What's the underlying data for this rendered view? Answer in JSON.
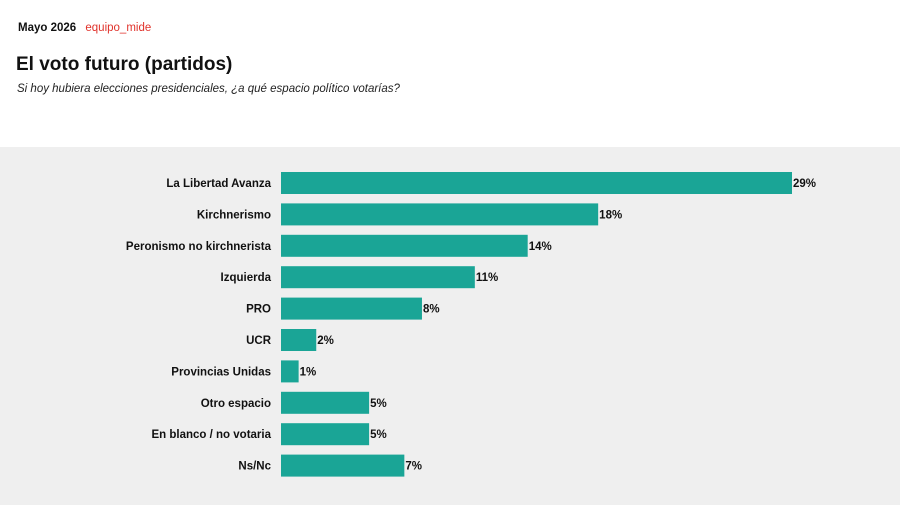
{
  "header": {
    "date": "Mayo 2026",
    "handle": "equipo_mide",
    "title": "El voto futuro (partidos)",
    "subtitle": "Si hoy hubiera elecciones presidenciales, ¿a qué espacio político votarías?"
  },
  "colors": {
    "bar": "#1aa596",
    "panel": "#efefef",
    "handle": "#e0322b"
  },
  "chart_data": {
    "type": "bar",
    "orientation": "horizontal",
    "categories": [
      "La Libertad Avanza",
      "Kirchnerismo",
      "Peronismo no kirchnerista",
      "Izquierda",
      "PRO",
      "UCR",
      "Provincias Unidas",
      "Otro espacio",
      "En blanco / no votaria",
      "Ns/Nc"
    ],
    "values": [
      29,
      18,
      14,
      11,
      8,
      2,
      1,
      5,
      5,
      7
    ],
    "value_labels": [
      "29%",
      "18%",
      "14%",
      "11%",
      "8%",
      "2%",
      "1%",
      "5%",
      "5%",
      "7%"
    ],
    "unit": "%",
    "xlim": [
      0,
      29
    ],
    "grid": false,
    "legend": "none"
  }
}
